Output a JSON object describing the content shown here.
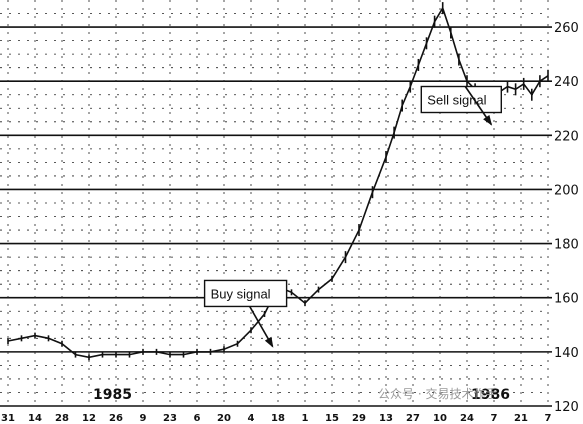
{
  "chart_data": {
    "type": "line",
    "title": "",
    "xlabel": "",
    "ylabel": "",
    "ylim": [
      120,
      270
    ],
    "y_ticks": [
      120,
      140,
      160,
      180,
      200,
      220,
      240,
      260
    ],
    "y_axis_side": "right",
    "grid": true,
    "x_tick_labels": [
      "31",
      "14",
      "28",
      "12",
      "26",
      "9",
      "23",
      "6",
      "20",
      "4",
      "18",
      "1",
      "15",
      "29",
      "13",
      "27",
      "10",
      "24",
      "7",
      "21",
      "7"
    ],
    "year_labels": [
      {
        "text": "1985",
        "at_tick": 3
      },
      {
        "text": "1986",
        "at_tick": 17
      }
    ],
    "series": [
      {
        "x": [
          0,
          0.5,
          1,
          1.5,
          2,
          2.5,
          3,
          3.5,
          4,
          4.5,
          5,
          5.5,
          6,
          6.5,
          7,
          7.5,
          8,
          8.5,
          9,
          9.5,
          10,
          10.5,
          11,
          11.5,
          12,
          12.5,
          13,
          13.5,
          14,
          14.3,
          14.6,
          14.9,
          15.2,
          15.5,
          15.8,
          16.1,
          16.4,
          16.7,
          17,
          17.3,
          17.6,
          17.9,
          18.2,
          18.5,
          18.8,
          19.1,
          19.4,
          19.7,
          20
        ],
        "y": [
          144,
          145,
          146,
          145,
          143,
          139,
          138,
          139,
          139,
          139,
          140,
          140,
          139,
          139,
          140,
          140,
          141,
          143,
          148,
          154,
          164,
          162,
          158,
          163,
          167,
          175,
          185,
          199,
          212,
          221,
          231,
          238,
          246,
          254,
          262,
          267,
          258,
          248,
          240,
          237,
          235,
          232,
          236,
          238,
          237,
          239,
          235,
          240,
          242
        ]
      }
    ],
    "annotations": [
      {
        "text": "Buy signal",
        "points_to_x": 9.8,
        "points_to_y": 142
      },
      {
        "text": "Sell signal",
        "points_to_x": 17.9,
        "points_to_y": 224
      }
    ]
  },
  "watermark": {
    "text": "公众号 · 交易技术作手"
  }
}
